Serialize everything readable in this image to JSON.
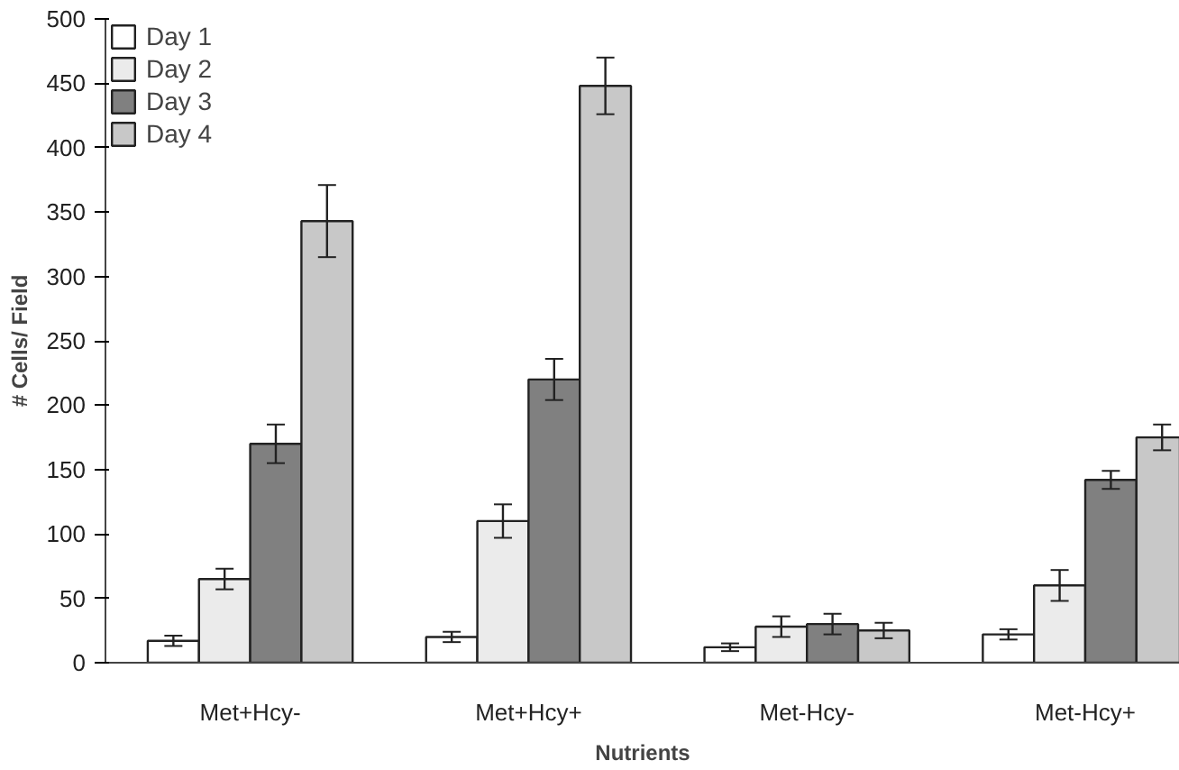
{
  "chart_data": {
    "type": "bar",
    "xlabel": "Nutrients",
    "ylabel": "# Cells/ Field",
    "categories": [
      "Met+Hcy-",
      "Met+Hcy+",
      "Met-Hcy-",
      "Met-Hcy+"
    ],
    "series": [
      {
        "name": "Day 1",
        "color": "#ffffff",
        "values": [
          17,
          20,
          12,
          22
        ],
        "errors": [
          4,
          4,
          3,
          4
        ]
      },
      {
        "name": "Day 2",
        "color": "#ebebeb",
        "values": [
          65,
          110,
          28,
          60
        ],
        "errors": [
          8,
          13,
          8,
          12
        ]
      },
      {
        "name": "Day 3",
        "color": "#808080",
        "values": [
          170,
          220,
          30,
          142
        ],
        "errors": [
          15,
          16,
          8,
          7
        ]
      },
      {
        "name": "Day 4",
        "color": "#c8c8c8",
        "values": [
          343,
          448,
          25,
          175
        ],
        "errors": [
          28,
          22,
          6,
          10
        ]
      }
    ],
    "ylim": [
      0,
      500
    ],
    "yticks": [
      0,
      50,
      100,
      150,
      200,
      250,
      300,
      350,
      400,
      450,
      500
    ],
    "grid": false,
    "legend": "top left"
  }
}
